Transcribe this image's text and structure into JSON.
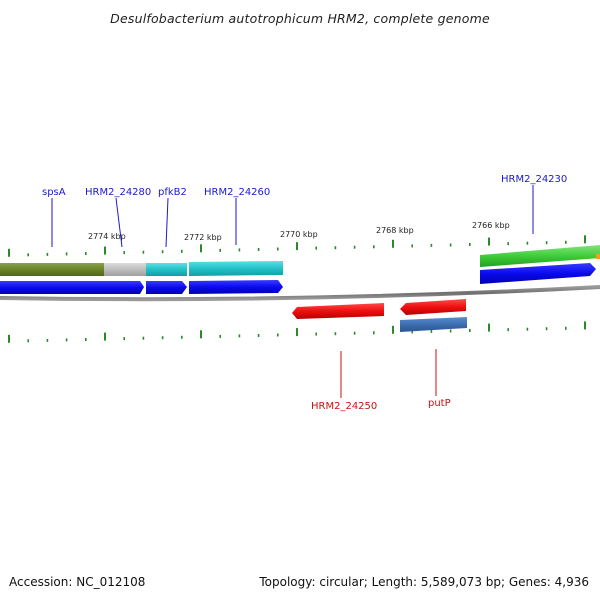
{
  "title": "Desulfobacterium autotrophicum HRM2, complete genome",
  "footer": {
    "accession": "Accession: NC_012108",
    "summary": "Topology: circular; Length: 5,589,073 bp; Genes: 4,936"
  },
  "kbp_labels": [
    "2774 kbp",
    "2772 kbp",
    "2770 kbp",
    "2768 kbp",
    "2766 kbp"
  ],
  "forward_genes": [
    "spsA",
    "HRM2_24280",
    "pfkB2",
    "HRM2_24260",
    "HRM2_24230"
  ],
  "reverse_genes": [
    "HRM2_24250",
    "putP"
  ],
  "colors": {
    "forward_label": "#1a1acc",
    "reverse_label": "#cc1111",
    "tick": "#2a8a2a",
    "backbone": "#777777"
  }
}
